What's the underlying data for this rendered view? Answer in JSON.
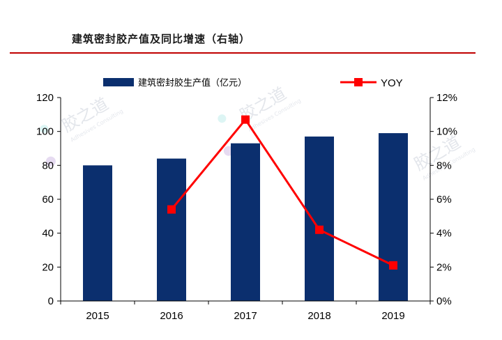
{
  "header": {
    "title": "建筑密封胶产值及同比增速（右轴）"
  },
  "chart_data": {
    "type": "bar",
    "categories": [
      "2015",
      "2016",
      "2017",
      "2018",
      "2019"
    ],
    "series": [
      {
        "name": "建筑密封胶生产值（亿元）",
        "type": "bar",
        "axis": "left",
        "color": "#0b2f6e",
        "values": [
          80,
          84,
          93,
          97,
          99
        ]
      },
      {
        "name": "YOY",
        "type": "line",
        "axis": "right",
        "color": "#ff0000",
        "values": [
          null,
          5.4,
          10.7,
          4.2,
          2.1
        ]
      }
    ],
    "y_left": {
      "min": 0,
      "max": 120,
      "ticks": [
        "0",
        "20",
        "40",
        "60",
        "80",
        "100",
        "120"
      ]
    },
    "y_right": {
      "min": 0,
      "max": 12,
      "ticks": [
        "0%",
        "2%",
        "4%",
        "6%",
        "8%",
        "10%",
        "12%"
      ]
    },
    "legend_position": "top",
    "grid": false
  },
  "watermark": {
    "text": "胶之道",
    "subtext": "Adhesives Consulting"
  }
}
